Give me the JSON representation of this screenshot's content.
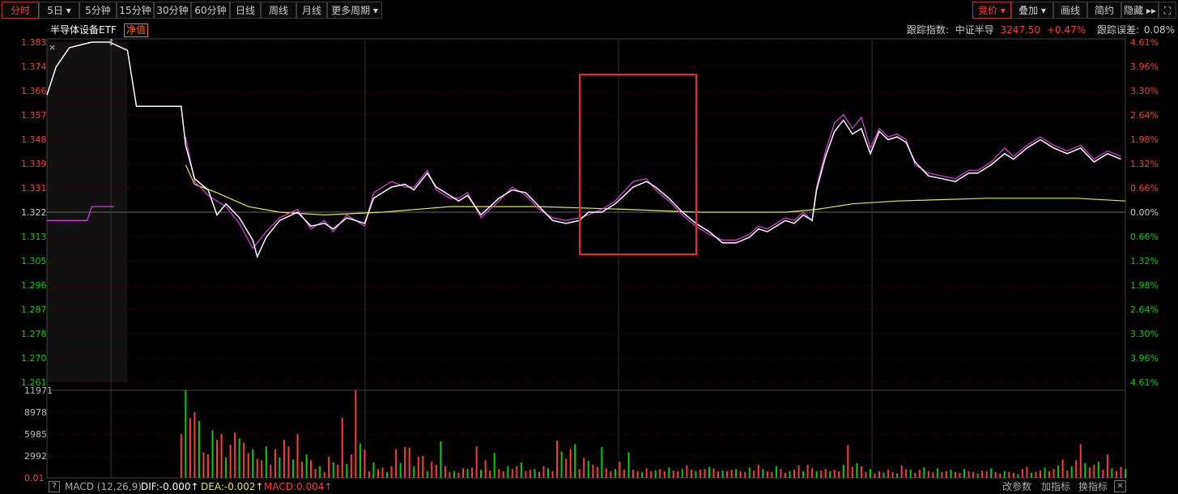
{
  "toolbar": {
    "left": [
      {
        "label": "分时",
        "active": true
      },
      {
        "label": "5日",
        "caret": true
      },
      {
        "label": "5分钟"
      },
      {
        "label": "15分钟"
      },
      {
        "label": "30分钟"
      },
      {
        "label": "60分钟"
      },
      {
        "label": "日线"
      },
      {
        "label": "周线"
      },
      {
        "label": "月线"
      },
      {
        "label": "更多周期",
        "caret": true
      }
    ],
    "right": [
      {
        "label": "竞价",
        "caret": true,
        "active": true
      },
      {
        "label": "叠加",
        "caret": true
      },
      {
        "label": "画线"
      },
      {
        "label": "简约"
      },
      {
        "label": "隐藏 ▸▸"
      },
      {
        "label": "⛶"
      }
    ]
  },
  "subheader": {
    "instrument": "半导体设备ETF",
    "badge": "净值",
    "tracking_label": "跟踪指数:",
    "tracking_index": "中证半导",
    "tracking_value": "3247.50",
    "tracking_change": "+0.47%",
    "tracking_error_label": "跟踪误差:",
    "tracking_error": "0.08%"
  },
  "footer": {
    "help": "?",
    "macd_name": "MACD (12,26,9)",
    "dif": "DIF:-0.000↑",
    "dea": "DEA:-0.002↑",
    "macd": "MACD:0.004↑",
    "buttons": [
      "改参数",
      "加指标",
      "换指标"
    ],
    "close": "✕"
  },
  "colors": {
    "up": "#ff3b3b",
    "down": "#00d300",
    "price_line": "#ffffff",
    "avg_line": "#e8e84a",
    "index_line": "#d23cd2",
    "grid": "#3a0000",
    "highlight_box": "#ff2020"
  },
  "chart_data": {
    "type": "line",
    "price_ticks_left": [
      "1.383",
      "1.374",
      "1.366",
      "1.357",
      "1.348",
      "1.339",
      "1.331",
      "1.322",
      "1.313",
      "1.305",
      "1.296",
      "1.287",
      "1.278",
      "1.270",
      "1.261"
    ],
    "pct_ticks_right": [
      "4.61%",
      "3.96%",
      "3.30%",
      "2.64%",
      "1.98%",
      "1.32%",
      "0.66%",
      "0.00%",
      "0.66%",
      "1.32%",
      "1.98%",
      "2.64%",
      "3.30%",
      "3.96%",
      "4.61%"
    ],
    "ylim": [
      1.261,
      1.383
    ],
    "baseline": 1.322,
    "volume_ticks": [
      "11971",
      "8978",
      "5985",
      "2992",
      "0.01"
    ],
    "volume_max": 11971,
    "n_points": 242,
    "price": [
      [
        0,
        1.364
      ],
      [
        2,
        1.374
      ],
      [
        5,
        1.381
      ],
      [
        10,
        1.383
      ],
      [
        14,
        1.383
      ],
      [
        18,
        1.38
      ],
      [
        20,
        1.36
      ],
      [
        22,
        1.36
      ],
      [
        28,
        1.36
      ],
      [
        30,
        1.36
      ],
      [
        31,
        1.346
      ],
      [
        33,
        1.334
      ],
      [
        36,
        1.33
      ],
      [
        38,
        1.321
      ],
      [
        40,
        1.325
      ],
      [
        43,
        1.32
      ],
      [
        46,
        1.312
      ],
      [
        47,
        1.306
      ],
      [
        49,
        1.313
      ],
      [
        52,
        1.319
      ],
      [
        56,
        1.322
      ],
      [
        59,
        1.317
      ],
      [
        62,
        1.318
      ],
      [
        64,
        1.316
      ],
      [
        67,
        1.32
      ],
      [
        71,
        1.318
      ],
      [
        73,
        1.327
      ],
      [
        77,
        1.331
      ],
      [
        80,
        1.332
      ],
      [
        82,
        1.33
      ],
      [
        85,
        1.336
      ],
      [
        87,
        1.331
      ],
      [
        90,
        1.328
      ],
      [
        92,
        1.326
      ],
      [
        94,
        1.328
      ],
      [
        97,
        1.321
      ],
      [
        101,
        1.327
      ],
      [
        104,
        1.33
      ],
      [
        107,
        1.329
      ],
      [
        110,
        1.324
      ],
      [
        113,
        1.319
      ],
      [
        116,
        1.318
      ],
      [
        119,
        1.319
      ],
      [
        121,
        1.322
      ],
      [
        124,
        1.322
      ],
      [
        127,
        1.325
      ],
      [
        131,
        1.331
      ],
      [
        134,
        1.333
      ],
      [
        136,
        1.331
      ],
      [
        139,
        1.327
      ],
      [
        142,
        1.322
      ],
      [
        145,
        1.318
      ],
      [
        148,
        1.315
      ],
      [
        151,
        1.311
      ],
      [
        154,
        1.311
      ],
      [
        157,
        1.313
      ],
      [
        159,
        1.316
      ],
      [
        161,
        1.315
      ],
      [
        163,
        1.317
      ],
      [
        165,
        1.319
      ],
      [
        167,
        1.318
      ],
      [
        169,
        1.321
      ],
      [
        171,
        1.319
      ],
      [
        172,
        1.33
      ],
      [
        174,
        1.342
      ],
      [
        176,
        1.351
      ],
      [
        178,
        1.355
      ],
      [
        180,
        1.35
      ],
      [
        182,
        1.352
      ],
      [
        184,
        1.343
      ],
      [
        186,
        1.351
      ],
      [
        188,
        1.348
      ],
      [
        190,
        1.349
      ],
      [
        192,
        1.347
      ],
      [
        194,
        1.34
      ],
      [
        197,
        1.335
      ],
      [
        200,
        1.334
      ],
      [
        203,
        1.333
      ],
      [
        206,
        1.336
      ],
      [
        208,
        1.336
      ],
      [
        211,
        1.339
      ],
      [
        214,
        1.343
      ],
      [
        216,
        1.341
      ],
      [
        219,
        1.345
      ],
      [
        222,
        1.348
      ],
      [
        225,
        1.345
      ],
      [
        228,
        1.343
      ],
      [
        231,
        1.345
      ],
      [
        234,
        1.34
      ],
      [
        237,
        1.343
      ],
      [
        240,
        1.341
      ]
    ],
    "index": [
      [
        31,
        1.349
      ],
      [
        33,
        1.333
      ],
      [
        36,
        1.328
      ],
      [
        40,
        1.324
      ],
      [
        43,
        1.318
      ],
      [
        46,
        1.309
      ],
      [
        49,
        1.315
      ],
      [
        52,
        1.32
      ],
      [
        56,
        1.323
      ],
      [
        59,
        1.316
      ],
      [
        62,
        1.319
      ],
      [
        64,
        1.315
      ],
      [
        67,
        1.321
      ],
      [
        71,
        1.317
      ],
      [
        73,
        1.329
      ],
      [
        77,
        1.333
      ],
      [
        80,
        1.331
      ],
      [
        82,
        1.331
      ],
      [
        85,
        1.337
      ],
      [
        87,
        1.33
      ],
      [
        90,
        1.327
      ],
      [
        92,
        1.327
      ],
      [
        94,
        1.329
      ],
      [
        97,
        1.32
      ],
      [
        101,
        1.326
      ],
      [
        104,
        1.331
      ],
      [
        107,
        1.328
      ],
      [
        110,
        1.323
      ],
      [
        113,
        1.32
      ],
      [
        116,
        1.319
      ],
      [
        119,
        1.32
      ],
      [
        121,
        1.321
      ],
      [
        124,
        1.323
      ],
      [
        127,
        1.326
      ],
      [
        131,
        1.333
      ],
      [
        134,
        1.334
      ],
      [
        136,
        1.33
      ],
      [
        139,
        1.326
      ],
      [
        142,
        1.321
      ],
      [
        145,
        1.317
      ],
      [
        148,
        1.314
      ],
      [
        151,
        1.312
      ],
      [
        154,
        1.312
      ],
      [
        157,
        1.314
      ],
      [
        159,
        1.317
      ],
      [
        161,
        1.316
      ],
      [
        163,
        1.318
      ],
      [
        165,
        1.32
      ],
      [
        167,
        1.319
      ],
      [
        169,
        1.322
      ],
      [
        171,
        1.319
      ],
      [
        172,
        1.331
      ],
      [
        174,
        1.344
      ],
      [
        176,
        1.354
      ],
      [
        178,
        1.357
      ],
      [
        180,
        1.352
      ],
      [
        182,
        1.356
      ],
      [
        184,
        1.345
      ],
      [
        186,
        1.352
      ],
      [
        188,
        1.349
      ],
      [
        190,
        1.35
      ],
      [
        192,
        1.348
      ],
      [
        194,
        1.339
      ],
      [
        197,
        1.336
      ],
      [
        200,
        1.335
      ],
      [
        203,
        1.334
      ],
      [
        206,
        1.337
      ],
      [
        208,
        1.337
      ],
      [
        211,
        1.34
      ],
      [
        214,
        1.345
      ],
      [
        216,
        1.342
      ],
      [
        219,
        1.346
      ],
      [
        222,
        1.349
      ],
      [
        225,
        1.346
      ],
      [
        228,
        1.344
      ],
      [
        231,
        1.346
      ],
      [
        234,
        1.341
      ],
      [
        237,
        1.344
      ],
      [
        240,
        1.342
      ]
    ],
    "avg": [
      [
        31,
        1.339
      ],
      [
        33,
        1.332
      ],
      [
        38,
        1.329
      ],
      [
        45,
        1.324
      ],
      [
        52,
        1.322
      ],
      [
        62,
        1.321
      ],
      [
        75,
        1.322
      ],
      [
        90,
        1.324
      ],
      [
        110,
        1.324
      ],
      [
        130,
        1.323
      ],
      [
        145,
        1.322
      ],
      [
        165,
        1.322
      ],
      [
        172,
        1.323
      ],
      [
        180,
        1.325
      ],
      [
        190,
        1.326
      ],
      [
        210,
        1.327
      ],
      [
        230,
        1.327
      ],
      [
        241,
        1.326
      ]
    ],
    "volume": [
      5985,
      11971,
      8200,
      8978,
      7800,
      3500,
      3200,
      6500,
      5200,
      6000,
      2800,
      4500,
      6200,
      5400,
      4800,
      3400,
      3900,
      2600,
      2400,
      4300,
      1800,
      3900,
      2800,
      5200,
      4300,
      2500,
      6000,
      2200,
      3200,
      2400,
      1200,
      1600,
      800,
      2900,
      2100,
      1800,
      8200,
      1900,
      3200,
      11971,
      4700,
      3900,
      900,
      2100,
      1200,
      1400,
      800,
      1600,
      3900,
      2000,
      4200,
      4100,
      1600,
      2900,
      3000,
      900,
      2200,
      1800,
      5000,
      1600,
      800,
      900,
      700,
      1300,
      1200,
      1400,
      4300,
      1100,
      2400,
      1000,
      3400,
      1200,
      900,
      1600,
      1200,
      1600,
      2100,
      900,
      1100,
      1200,
      800,
      1600,
      1300,
      900,
      5100,
      3600,
      2600,
      4000,
      4600,
      1200,
      2700,
      2300,
      1800,
      1500,
      4200,
      1300,
      900,
      1200,
      2200,
      1100,
      3500,
      1100,
      900,
      800,
      1300,
      900,
      1000,
      1200,
      900,
      1400,
      1000,
      900,
      1200,
      1700,
      1100,
      900,
      1100,
      1200,
      1500,
      1300,
      900,
      1000,
      900,
      1100,
      1200,
      900,
      800,
      1400,
      1000,
      1800,
      1200,
      900,
      800,
      1600,
      1200,
      700,
      900,
      1100,
      1700,
      900,
      1800,
      1300,
      900,
      1000,
      1200,
      900,
      1100,
      900,
      1800,
      4500,
      1500,
      2000,
      1600,
      800,
      1200,
      600,
      900,
      700,
      1100,
      800,
      600,
      1700,
      1200,
      1100,
      700,
      1100,
      1400,
      900,
      800,
      1300,
      800,
      900,
      1100,
      800,
      700,
      1200,
      900,
      800,
      600,
      1000,
      900,
      1300,
      800,
      600,
      900,
      800,
      700,
      500,
      1200,
      1500,
      700,
      800,
      1000,
      1400,
      900,
      1200,
      1700,
      2500,
      1000,
      1600,
      2400,
      4600,
      2000,
      1400,
      1800,
      2200,
      1100,
      3200,
      1300,
      900,
      1500,
      1200,
      1000,
      1300,
      1100,
      900,
      800,
      1700,
      1400,
      1000,
      800,
      1200,
      1000,
      900,
      900,
      1000,
      1200,
      1700,
      800,
      600,
      900,
      1200,
      1800,
      2200,
      800,
      1100,
      1300,
      1400,
      2600,
      2800,
      1200,
      2200
    ]
  }
}
